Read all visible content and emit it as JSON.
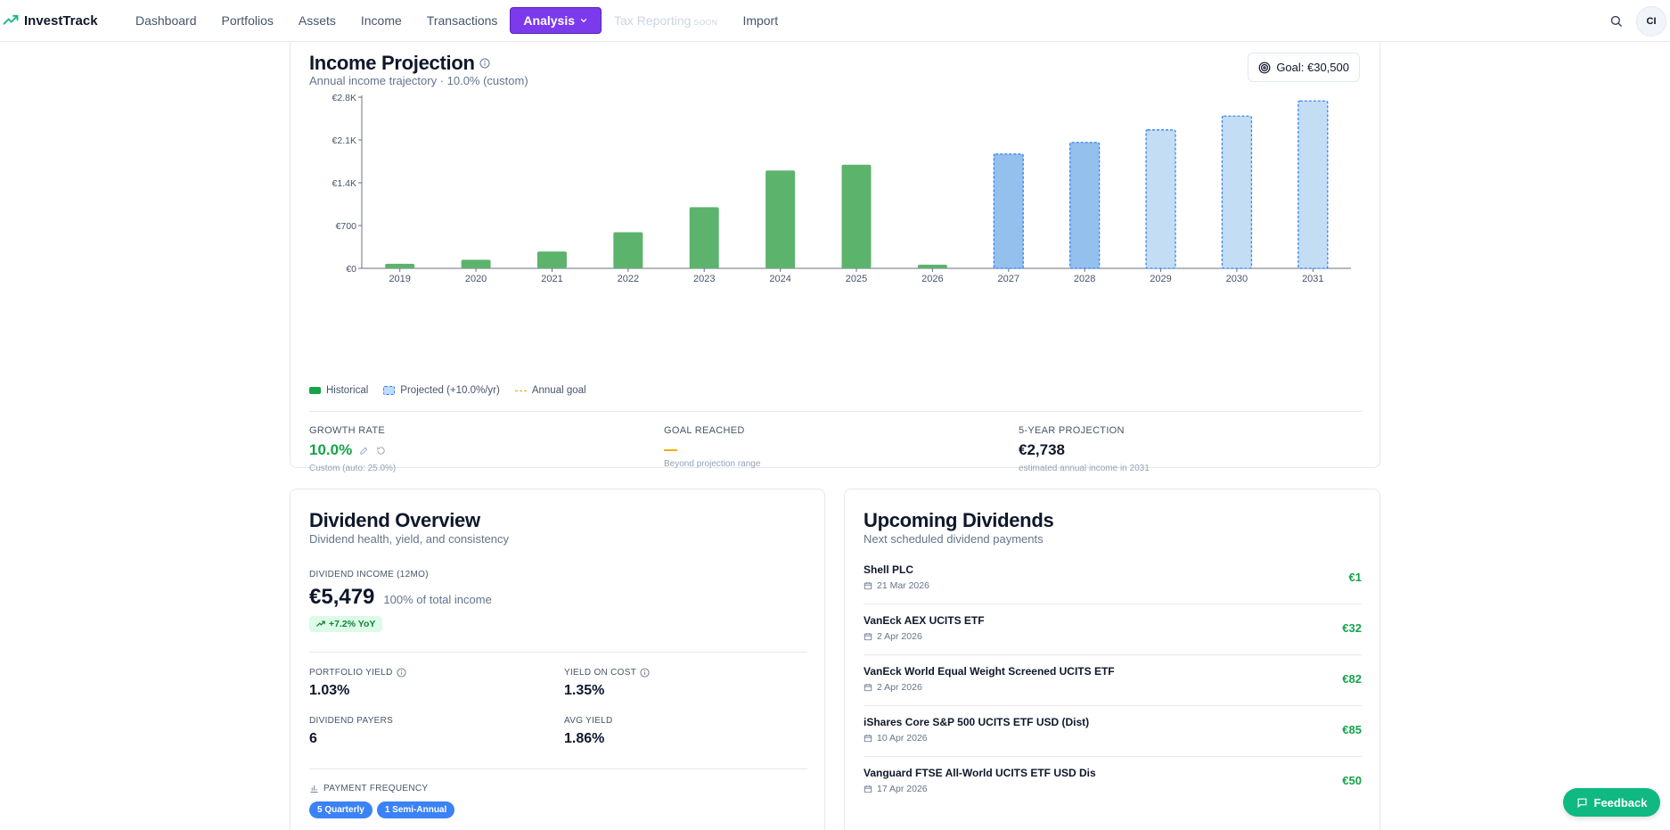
{
  "app": {
    "brand": "InvestTrack"
  },
  "nav": {
    "items": [
      {
        "label": "Dashboard"
      },
      {
        "label": "Portfolios"
      },
      {
        "label": "Assets"
      },
      {
        "label": "Income"
      },
      {
        "label": "Transactions"
      }
    ],
    "analysis": "Analysis",
    "tax": "Tax Reporting",
    "soon": "SOON",
    "import": "Import",
    "avatar": "CI"
  },
  "projection": {
    "title": "Income Projection",
    "subtitle": "Annual income trajectory · 10.0% (custom)",
    "goal_label": "Goal: €30,500",
    "legend": {
      "historical": "Historical",
      "projected": "Projected (+10.0%/yr)",
      "goal": "Annual goal"
    },
    "stats": {
      "growth": {
        "label": "GROWTH RATE",
        "value": "10.0%",
        "hint": "Custom (auto: 25.0%)"
      },
      "goal": {
        "label": "GOAL REACHED",
        "hint": "Beyond projection range"
      },
      "five": {
        "label": "5-YEAR PROJECTION",
        "value": "€2,738",
        "hint": "estimated annual income in 2031"
      }
    }
  },
  "chart_data": {
    "type": "bar",
    "categories": [
      "2019",
      "2020",
      "2021",
      "2022",
      "2023",
      "2024",
      "2025",
      "2026",
      "2027",
      "2028",
      "2029",
      "2030",
      "2031"
    ],
    "series": [
      {
        "name": "Historical",
        "values": [
          75,
          140,
          275,
          590,
          1000,
          1600,
          1695,
          60,
          null,
          null,
          null,
          null,
          null
        ]
      },
      {
        "name": "Projected (+10.0%/yr)",
        "values": [
          null,
          null,
          null,
          null,
          null,
          null,
          null,
          null,
          1870,
          2060,
          2265,
          2490,
          2738
        ]
      }
    ],
    "yticks": [
      "€0",
      "€700",
      "€1.4K",
      "€2.1K",
      "€2.8K"
    ],
    "ylim": [
      0,
      2800
    ],
    "colors": {
      "historical": "#5cb36c",
      "projected_dark": "#93c0ec",
      "projected_light": "#c3ddf5",
      "projected_border": "#3b82f6"
    }
  },
  "dividends": {
    "title": "Dividend Overview",
    "subtitle": "Dividend health, yield, and consistency",
    "income_label": "DIVIDEND INCOME (12MO)",
    "income_value": "€5,479",
    "income_pct": "100% of total income",
    "yoy": "+7.2% YoY",
    "portfolio_yield_label": "PORTFOLIO YIELD",
    "portfolio_yield": "1.03%",
    "yoc_label": "YIELD ON COST",
    "yoc": "1.35%",
    "payers_label": "DIVIDEND PAYERS",
    "payers": "6",
    "avg_label": "AVG YIELD",
    "avg": "1.86%",
    "freq_label": "PAYMENT FREQUENCY",
    "freq": [
      "5 Quarterly",
      "1 Semi-Annual"
    ]
  },
  "upcoming": {
    "title": "Upcoming Dividends",
    "subtitle": "Next scheduled dividend payments",
    "items": [
      {
        "name": "Shell PLC",
        "date": "21 Mar 2026",
        "amount": "€1"
      },
      {
        "name": "VanEck AEX UCITS ETF",
        "date": "2 Apr 2026",
        "amount": "€32"
      },
      {
        "name": "VanEck World Equal Weight Screened UCITS ETF",
        "date": "2 Apr 2026",
        "amount": "€82"
      },
      {
        "name": "iShares Core S&P 500 UCITS ETF USD (Dist)",
        "date": "10 Apr 2026",
        "amount": "€85"
      },
      {
        "name": "Vanguard FTSE All-World UCITS ETF USD Dis",
        "date": "17 Apr 2026",
        "amount": "€50"
      }
    ]
  },
  "feedback": "Feedback"
}
